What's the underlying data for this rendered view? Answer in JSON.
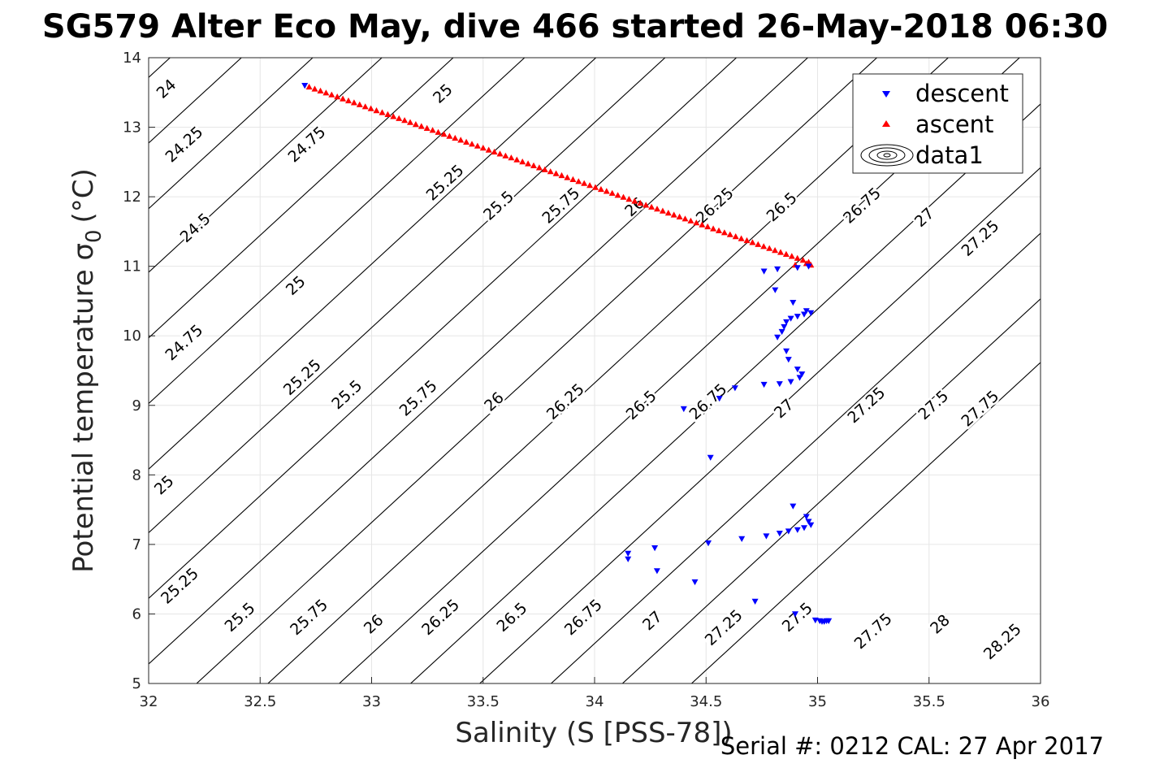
{
  "chart_data": {
    "type": "scatter",
    "title": "SG579 Alter Eco May, dive 466 started 26-May-2018 06:30",
    "xlabel": "Salinity (S [PSS-78])",
    "ylabel": "Potential temperature σ 0 (°C)",
    "ylabel_main": "Potential temperature σ",
    "ylabel_sub": "0",
    "ylabel_unit": "(°C)",
    "xlim": [
      32,
      36
    ],
    "ylim": [
      5,
      14
    ],
    "xticks": [
      32,
      32.5,
      33,
      33.5,
      34,
      34.5,
      35,
      35.5,
      36
    ],
    "xtick_labels": [
      "32",
      "32.5",
      "33",
      "33.5",
      "34",
      "34.5",
      "35",
      "35.5",
      "36"
    ],
    "yticks": [
      5,
      6,
      7,
      8,
      9,
      10,
      11,
      12,
      13,
      14
    ],
    "ytick_labels": [
      "5",
      "6",
      "7",
      "8",
      "9",
      "10",
      "11",
      "12",
      "13",
      "14"
    ],
    "grid": true,
    "legend_position": "top-right",
    "series": [
      {
        "name": "descent",
        "marker": "triangle-down",
        "color": "#0000ff",
        "points": [
          [
            32.7,
            13.6
          ],
          [
            34.96,
            11.0
          ],
          [
            34.91,
            10.98
          ],
          [
            34.82,
            10.96
          ],
          [
            34.76,
            10.93
          ],
          [
            34.81,
            10.66
          ],
          [
            34.89,
            10.48
          ],
          [
            34.95,
            10.36
          ],
          [
            34.97,
            10.33
          ],
          [
            34.94,
            10.31
          ],
          [
            34.91,
            10.28
          ],
          [
            34.88,
            10.25
          ],
          [
            34.86,
            10.2
          ],
          [
            34.85,
            10.13
          ],
          [
            34.84,
            10.06
          ],
          [
            34.82,
            9.98
          ],
          [
            34.86,
            9.78
          ],
          [
            34.87,
            9.66
          ],
          [
            34.91,
            9.52
          ],
          [
            34.93,
            9.45
          ],
          [
            34.92,
            9.4
          ],
          [
            34.88,
            9.34
          ],
          [
            34.83,
            9.31
          ],
          [
            34.76,
            9.3
          ],
          [
            34.63,
            9.25
          ],
          [
            34.56,
            9.1
          ],
          [
            34.4,
            8.95
          ],
          [
            34.52,
            8.25
          ],
          [
            34.89,
            7.55
          ],
          [
            34.95,
            7.4
          ],
          [
            34.96,
            7.33
          ],
          [
            34.97,
            7.28
          ],
          [
            34.94,
            7.24
          ],
          [
            34.91,
            7.21
          ],
          [
            34.87,
            7.19
          ],
          [
            34.83,
            7.16
          ],
          [
            34.77,
            7.12
          ],
          [
            34.66,
            7.08
          ],
          [
            34.51,
            7.02
          ],
          [
            34.27,
            6.95
          ],
          [
            34.15,
            6.87
          ],
          [
            34.15,
            6.79
          ],
          [
            34.28,
            6.62
          ],
          [
            34.45,
            6.46
          ],
          [
            34.72,
            6.18
          ],
          [
            34.9,
            6.0
          ],
          [
            34.99,
            5.91
          ],
          [
            35.01,
            5.9
          ],
          [
            35.02,
            5.89
          ],
          [
            35.03,
            5.89
          ],
          [
            35.04,
            5.9
          ],
          [
            35.05,
            5.9
          ]
        ]
      },
      {
        "name": "ascent",
        "marker": "triangle-up",
        "color": "#ff0000",
        "line_from": [
          32.72,
          13.58
        ],
        "line_to": [
          34.96,
          11.06
        ],
        "count": 90,
        "extra_points": [
          [
            34.9,
            11.02
          ],
          [
            34.95,
            11.04
          ],
          [
            34.97,
            11.02
          ]
        ]
      }
    ],
    "contours": {
      "name": "data1",
      "color": "#000000",
      "levels": [
        24.0,
        24.25,
        24.5,
        24.75,
        25.0,
        25.25,
        25.5,
        25.75,
        26.0,
        26.25,
        26.5,
        26.75,
        27.0,
        27.25,
        27.5,
        27.75,
        28.0,
        28.25
      ],
      "line_anchors_at_T10": [
        30.74,
        31.06,
        31.38,
        31.69,
        32.01,
        32.33,
        32.65,
        32.96,
        33.28,
        33.6,
        33.91,
        34.23,
        34.55,
        34.87,
        35.18,
        35.5,
        35.82,
        36.13
      ],
      "line_slope_dT_dS": 2.95,
      "labels": [
        {
          "text": "24",
          "S": 32.08,
          "T": 13.55
        },
        {
          "text": "24.25",
          "S": 32.16,
          "T": 12.75
        },
        {
          "text": "24.5",
          "S": 32.21,
          "T": 11.55
        },
        {
          "text": "24.75",
          "S": 32.16,
          "T": 9.9
        },
        {
          "text": "25",
          "S": 32.07,
          "T": 7.85
        },
        {
          "text": "25.25",
          "S": 32.14,
          "T": 6.4
        },
        {
          "text": "25",
          "S": 33.32,
          "T": 13.48
        },
        {
          "text": "24.75",
          "S": 32.71,
          "T": 12.75
        },
        {
          "text": "25",
          "S": 32.66,
          "T": 10.72
        },
        {
          "text": "25.25",
          "S": 32.69,
          "T": 9.4
        },
        {
          "text": "25.5",
          "S": 32.41,
          "T": 5.95
        },
        {
          "text": "25.25",
          "S": 33.33,
          "T": 12.2
        },
        {
          "text": "25.5",
          "S": 32.89,
          "T": 9.15
        },
        {
          "text": "25.75",
          "S": 32.72,
          "T": 5.95
        },
        {
          "text": "25.5",
          "S": 33.57,
          "T": 11.87
        },
        {
          "text": "25.75",
          "S": 33.21,
          "T": 9.1
        },
        {
          "text": "26",
          "S": 33.01,
          "T": 5.85
        },
        {
          "text": "25.75",
          "S": 33.85,
          "T": 11.87
        },
        {
          "text": "26",
          "S": 33.55,
          "T": 9.05
        },
        {
          "text": "26.25",
          "S": 33.31,
          "T": 5.95
        },
        {
          "text": "26",
          "S": 34.18,
          "T": 11.85
        },
        {
          "text": "26.25",
          "S": 33.87,
          "T": 9.05
        },
        {
          "text": "26.5",
          "S": 33.63,
          "T": 5.95
        },
        {
          "text": "26.25",
          "S": 34.54,
          "T": 11.87
        },
        {
          "text": "26.5",
          "S": 34.21,
          "T": 9.0
        },
        {
          "text": "26.75",
          "S": 33.95,
          "T": 5.95
        },
        {
          "text": "26.5",
          "S": 34.84,
          "T": 11.85
        },
        {
          "text": "26.75",
          "S": 34.51,
          "T": 9.05
        },
        {
          "text": "27",
          "S": 34.26,
          "T": 5.9
        },
        {
          "text": "26.75",
          "S": 35.2,
          "T": 11.87
        },
        {
          "text": "27",
          "S": 34.85,
          "T": 8.95
        },
        {
          "text": "27.25",
          "S": 34.58,
          "T": 5.8
        },
        {
          "text": "27",
          "S": 35.48,
          "T": 11.7
        },
        {
          "text": "27.25",
          "S": 35.22,
          "T": 9.0
        },
        {
          "text": "27.5",
          "S": 34.91,
          "T": 5.95
        },
        {
          "text": "27.25",
          "S": 35.73,
          "T": 11.4
        },
        {
          "text": "27.5",
          "S": 35.52,
          "T": 9.0
        },
        {
          "text": "27.75",
          "S": 35.25,
          "T": 5.75
        },
        {
          "text": "27.75",
          "S": 35.73,
          "T": 8.95
        },
        {
          "text": "28",
          "S": 35.55,
          "T": 5.85
        },
        {
          "text": "28.25",
          "S": 35.83,
          "T": 5.6
        }
      ]
    },
    "legend": [
      {
        "label": "descent",
        "icon": "triangle-down-icon",
        "color": "#0000ff"
      },
      {
        "label": "ascent",
        "icon": "triangle-up-icon",
        "color": "#ff0000"
      },
      {
        "label": "data1",
        "icon": "contour-icon",
        "color": "#000000"
      }
    ]
  },
  "footer": {
    "serial": "Serial #: 0212  CAL: 27 Apr 2017"
  }
}
